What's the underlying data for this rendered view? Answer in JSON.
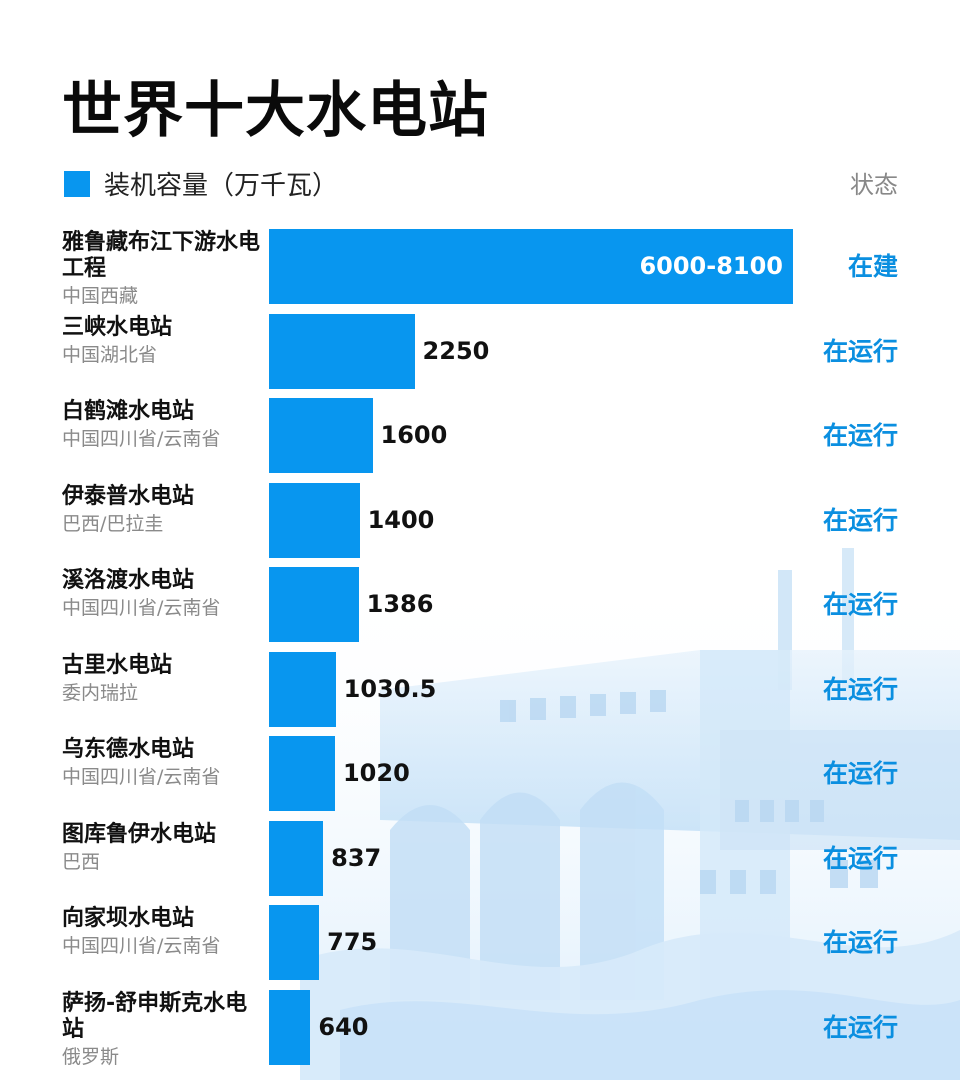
{
  "title": "世界十大水电站",
  "legend": {
    "label": "装机容量（万千瓦）",
    "color": "#0896ef"
  },
  "status_header": "状态",
  "chart_data": {
    "type": "bar",
    "orientation": "horizontal",
    "title": "世界十大水电站",
    "unit": "万千瓦",
    "categories": [
      "雅鲁藏布江下游水电工程",
      "三峡水电站",
      "白鹤滩水电站",
      "伊泰普水电站",
      "溪洛渡水电站",
      "古里水电站",
      "乌东德水电站",
      "图库鲁伊水电站",
      "向家坝水电站",
      "萨扬-舒申斯克水电站"
    ],
    "values": [
      8100,
      2250,
      1600,
      1400,
      1386,
      1030.5,
      1020,
      837,
      775,
      640
    ],
    "value_labels": [
      "6000-8100",
      "2250",
      "1600",
      "1400",
      "1386",
      "1030.5",
      "1020",
      "837",
      "775",
      "640"
    ],
    "xlim": [
      0,
      8100
    ]
  },
  "rows": [
    {
      "name": "雅鲁藏布江下游水电工程",
      "location": "中国西藏",
      "value": 8100,
      "value_label": "6000-8100",
      "status": "在建"
    },
    {
      "name": "三峡水电站",
      "location": "中国湖北省",
      "value": 2250,
      "value_label": "2250",
      "status": "在运行"
    },
    {
      "name": "白鹤滩水电站",
      "location": "中国四川省/云南省",
      "value": 1600,
      "value_label": "1600",
      "status": "在运行"
    },
    {
      "name": "伊泰普水电站",
      "location": "巴西/巴拉圭",
      "value": 1400,
      "value_label": "1400",
      "status": "在运行"
    },
    {
      "name": "溪洛渡水电站",
      "location": "中国四川省/云南省",
      "value": 1386,
      "value_label": "1386",
      "status": "在运行"
    },
    {
      "name": "古里水电站",
      "location": "委内瑞拉",
      "value": 1030.5,
      "value_label": "1030.5",
      "status": "在运行"
    },
    {
      "name": "乌东德水电站",
      "location": "中国四川省/云南省",
      "value": 1020,
      "value_label": "1020",
      "status": "在运行"
    },
    {
      "name": "图库鲁伊水电站",
      "location": "巴西",
      "value": 837,
      "value_label": "837",
      "status": "在运行"
    },
    {
      "name": "向家坝水电站",
      "location": "中国四川省/云南省",
      "value": 775,
      "value_label": "775",
      "status": "在运行"
    },
    {
      "name": "萨扬-舒申斯克水电站",
      "location": "俄罗斯",
      "value": 640,
      "value_label": "640",
      "status": "在运行"
    }
  ]
}
